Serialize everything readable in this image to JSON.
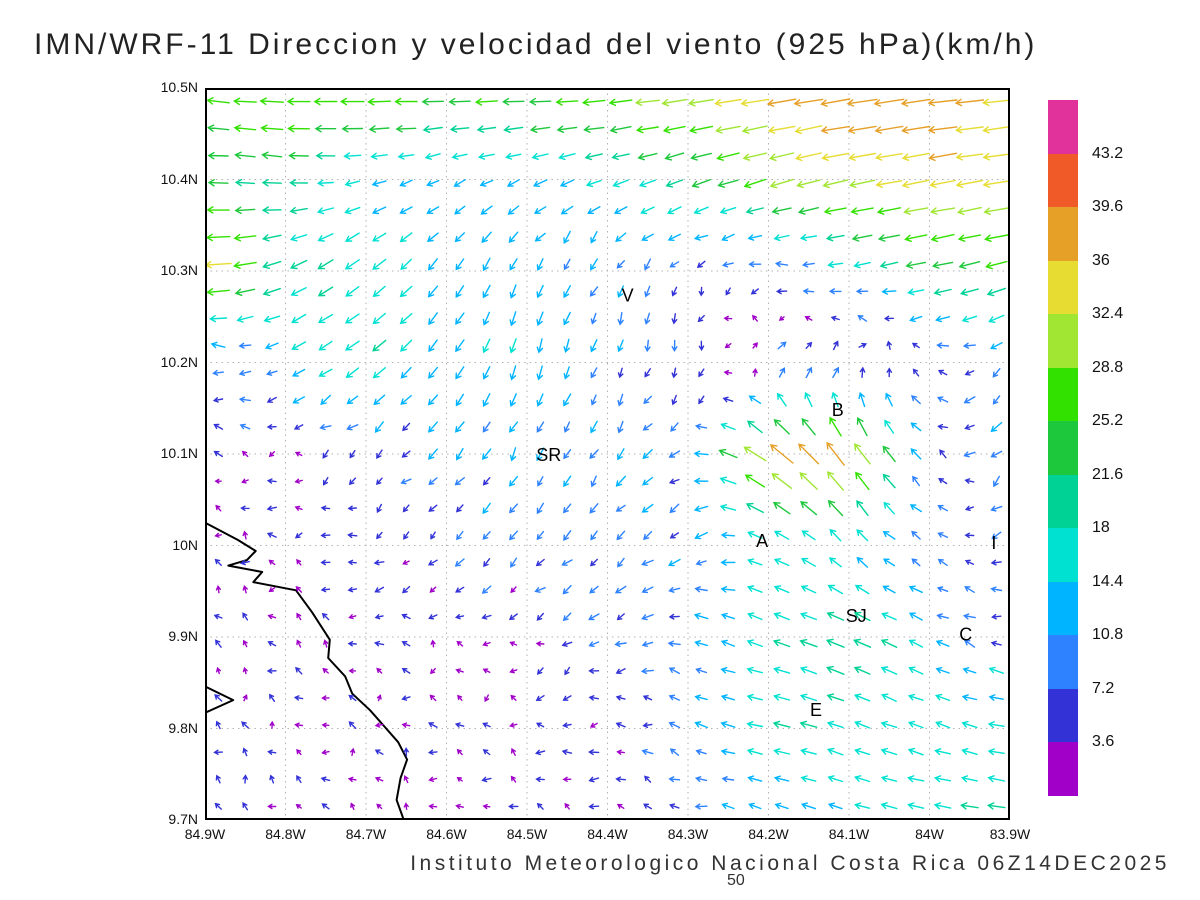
{
  "chart_data": {
    "type": "vector-field",
    "title": "IMN/WRF-11 Direccion y velocidad del viento (925 hPa)(km/h)",
    "units": "km/h",
    "level_hpa": 925,
    "x_ticks": [
      "84.9W",
      "84.8W",
      "84.7W",
      "84.6W",
      "84.5W",
      "84.4W",
      "84.3W",
      "84.2W",
      "84.1W",
      "84W",
      "83.9W"
    ],
    "y_ticks": [
      "10.5N",
      "10.4N",
      "10.3N",
      "10.2N",
      "10.1N",
      "10N",
      "9.9N",
      "9.8N",
      "9.7N"
    ],
    "lon_range": [
      -84.9,
      -83.9
    ],
    "lat_range": [
      9.7,
      10.5
    ],
    "grid_style": "dotted",
    "colorbar": {
      "levels": [
        3.6,
        7.2,
        10.8,
        14.4,
        18,
        21.6,
        25.2,
        28.8,
        32.4,
        36,
        39.6,
        43.2
      ],
      "colors": [
        "#a000c8",
        "#3232d7",
        "#2e82ff",
        "#00b4ff",
        "#00e1d2",
        "#00d296",
        "#1ec83c",
        "#32e100",
        "#a0e632",
        "#e6dc32",
        "#e6a028",
        "#f05a28",
        "#e1329b"
      ]
    },
    "stations": [
      {
        "label": "V",
        "lon": -84.375,
        "lat": 10.273
      },
      {
        "label": "B",
        "lon": -84.114,
        "lat": 10.148
      },
      {
        "label": "SR",
        "lon": -84.473,
        "lat": 10.099
      },
      {
        "label": "A",
        "lon": -84.208,
        "lat": 10.005
      },
      {
        "label": "SJ",
        "lon": -84.091,
        "lat": 9.923
      },
      {
        "label": "C",
        "lon": -83.955,
        "lat": 9.903
      },
      {
        "label": "E",
        "lon": -84.141,
        "lat": 9.82
      },
      {
        "label": "I",
        "lon": -83.92,
        "lat": 10.003
      }
    ],
    "coastline": [
      [
        [
          -84.9,
          10.025
        ],
        [
          -84.859,
          10.006
        ],
        [
          -84.837,
          9.994
        ],
        [
          -84.848,
          9.984
        ],
        [
          -84.871,
          9.978
        ],
        [
          -84.829,
          9.971
        ],
        [
          -84.84,
          9.96
        ],
        [
          -84.787,
          9.951
        ],
        [
          -84.767,
          9.927
        ],
        [
          -84.745,
          9.897
        ],
        [
          -84.747,
          9.877
        ],
        [
          -84.726,
          9.857
        ],
        [
          -84.717,
          9.838
        ],
        [
          -84.695,
          9.82
        ],
        [
          -84.68,
          9.805
        ],
        [
          -84.66,
          9.785
        ],
        [
          -84.649,
          9.766
        ],
        [
          -84.657,
          9.746
        ],
        [
          -84.662,
          9.722
        ],
        [
          -84.653,
          9.7
        ]
      ],
      [
        [
          -84.9,
          9.846
        ],
        [
          -84.865,
          9.831
        ],
        [
          -84.9,
          9.817
        ]
      ]
    ],
    "wind_field": {
      "lats": [
        10.5,
        10.4,
        10.3,
        10.2,
        10.1,
        10.0,
        9.9,
        9.8,
        9.7
      ],
      "lons": [
        -84.9,
        -84.8,
        -84.7,
        -84.6,
        -84.5,
        -84.4,
        -84.3,
        -84.2,
        -84.1,
        -84.0,
        -83.9
      ],
      "u": [
        [
          -27,
          -29,
          -30,
          -28,
          -27,
          -29,
          -33,
          -37,
          -39,
          -38,
          -36
        ],
        [
          -23,
          -20,
          -13,
          -11,
          -12,
          -15,
          -19,
          -27,
          -32,
          -34,
          -32
        ],
        [
          -36,
          -18,
          -14,
          -8,
          -5,
          -4,
          -3,
          -6,
          -14,
          -22,
          -26
        ],
        [
          -4,
          -12,
          -14,
          -8,
          -4,
          -3,
          -2,
          6,
          8,
          -4,
          -8
        ],
        [
          -3,
          -4,
          -6,
          -6,
          -5,
          -6,
          -10,
          -30,
          -22,
          -6,
          -8
        ],
        [
          -3,
          -3,
          -4,
          -5,
          -6,
          -7,
          -8,
          -14,
          -10,
          -6,
          -6
        ],
        [
          -2,
          -2,
          -3,
          -3,
          -4,
          -6,
          -10,
          -16,
          -20,
          -12,
          -8
        ],
        [
          -2,
          -2,
          -2,
          -3,
          -4,
          -5,
          -8,
          -18,
          -16,
          -14,
          -16
        ],
        [
          -2,
          -2,
          -2,
          -2,
          -3,
          -4,
          -6,
          -10,
          -14,
          -18,
          -20
        ]
      ],
      "v": [
        [
          3,
          1,
          0,
          0,
          -1,
          -2,
          -5,
          -6,
          -6,
          -5,
          -4
        ],
        [
          1,
          2,
          -3,
          -5,
          -5,
          -5,
          -7,
          -8,
          -7,
          -6,
          -5
        ],
        [
          -2,
          -8,
          -12,
          -11,
          -12,
          -9,
          -5,
          0,
          -2,
          -5,
          -7
        ],
        [
          3,
          -6,
          -10,
          -12,
          -14,
          -10,
          -6,
          4,
          6,
          2,
          -8
        ],
        [
          2,
          0,
          -5,
          -8,
          -10,
          -8,
          -4,
          22,
          30,
          6,
          -10
        ],
        [
          2,
          1,
          -2,
          -4,
          -6,
          -6,
          -5,
          6,
          10,
          4,
          -4
        ],
        [
          2,
          2,
          1,
          0,
          -2,
          -3,
          2,
          6,
          8,
          6,
          2
        ],
        [
          2,
          2,
          2,
          1,
          0,
          0,
          3,
          4,
          6,
          5,
          3
        ],
        [
          2,
          2,
          2,
          1,
          1,
          1,
          2,
          3,
          4,
          3,
          2
        ]
      ]
    }
  },
  "footer": {
    "credit": "Instituto Meteorologico Nacional Costa Rica 06Z14DEC2025",
    "number": "50"
  }
}
